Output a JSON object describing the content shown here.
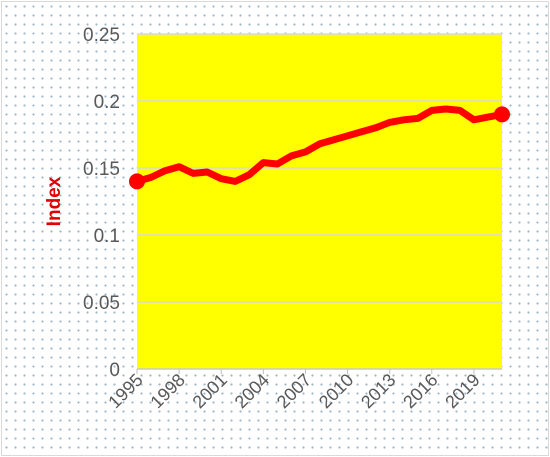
{
  "chart_data": {
    "type": "line",
    "title": "",
    "xlabel": "",
    "ylabel": "Index",
    "ylim": [
      0,
      0.25
    ],
    "yticks": [
      "0",
      "0.05",
      "0.1",
      "0.15",
      "0.2",
      "0.25"
    ],
    "xticks": [
      "1995",
      "1998",
      "2001",
      "2004",
      "2007",
      "2010",
      "2013",
      "2016",
      "2019"
    ],
    "x": [
      1995,
      1996,
      1997,
      1998,
      1999,
      2000,
      2001,
      2002,
      2003,
      2004,
      2005,
      2006,
      2007,
      2008,
      2009,
      2010,
      2011,
      2012,
      2013,
      2014,
      2015,
      2016,
      2017,
      2018,
      2019,
      2020,
      2021
    ],
    "series": [
      {
        "values": [
          0.14,
          0.143,
          0.148,
          0.151,
          0.146,
          0.147,
          0.142,
          0.14,
          0.145,
          0.154,
          0.153,
          0.159,
          0.162,
          0.168,
          0.171,
          0.174,
          0.177,
          0.18,
          0.184,
          0.186,
          0.187,
          0.193,
          0.194,
          0.193,
          0.186,
          0.188,
          0.19
        ]
      }
    ],
    "grid": true,
    "legend": "none",
    "colors": {
      "plot_background": "#ffff00",
      "line": "#ff0000",
      "gridline": "#d9d9d9",
      "tick_text": "#595959",
      "ylabel": "#e00000"
    }
  }
}
